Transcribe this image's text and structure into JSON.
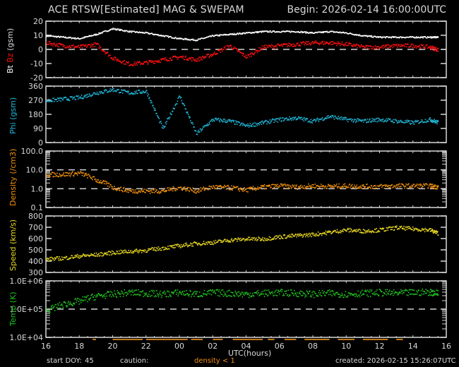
{
  "header": {
    "title": "ACE RTSW[Estimated] MAG & SWEPAM",
    "begin": "Begin: 2026-02-14 16:00:00UTC"
  },
  "footer": {
    "start_doy_label": "start DOY:",
    "start_doy_value": "45",
    "caution_label": "caution:",
    "caution_value": "density < 1",
    "created": "created: 2026-02-15 15:26:07UTC",
    "x_axis_label": "UTC(hours)"
  },
  "colors": {
    "bt": "#ffffff",
    "bz": "#ff1010",
    "phi": "#20b8d8",
    "density": "#f0900c",
    "speed": "#e8d820",
    "temp": "#20c020",
    "caution": "#c07818",
    "axes": "#d8d8d8"
  },
  "chart_data": [
    {
      "type": "scatter",
      "title": "Bt Bz (gsm)",
      "ylabel": "Bt  Bz  (gsm)",
      "ylabel_parts": [
        "Bt",
        "Bz",
        "(gsm)"
      ],
      "ylim": [
        -20,
        20
      ],
      "yticks": [
        "20",
        "10",
        "0",
        "-10",
        "-20"
      ],
      "reference_lines": [
        0
      ],
      "x": [
        16,
        17,
        18,
        19,
        20,
        21,
        22,
        23,
        24,
        25,
        26,
        27,
        28,
        29,
        30,
        31,
        32,
        33,
        34,
        35,
        36,
        37,
        38,
        39,
        39.5
      ],
      "series": [
        {
          "name": "Bt",
          "values": [
            10,
            9,
            8,
            11,
            15,
            13,
            12,
            10,
            8,
            7,
            10,
            11,
            12,
            13,
            13,
            13,
            12,
            13,
            12,
            10,
            9,
            9,
            9,
            9,
            9
          ]
        },
        {
          "name": "Bz",
          "values": [
            5,
            3,
            2,
            4,
            -6,
            -10,
            -9,
            -7,
            -5,
            -7,
            -3,
            3,
            -5,
            2,
            3,
            4,
            5,
            5,
            4,
            2,
            2,
            3,
            3,
            2,
            0
          ]
        }
      ]
    },
    {
      "type": "scatter",
      "title": "Phi (gsm)",
      "ylabel": "Phi (gsm)",
      "ylim": [
        0,
        360
      ],
      "yticks": [
        "360",
        "270",
        "180",
        "90",
        "0"
      ],
      "x": [
        16,
        17,
        18,
        19,
        20,
        21,
        22,
        23,
        24,
        25,
        26,
        27,
        28,
        29,
        30,
        31,
        32,
        33,
        34,
        35,
        36,
        37,
        38,
        39,
        39.5
      ],
      "series": [
        {
          "name": "Phi",
          "values": [
            270,
            280,
            290,
            320,
            340,
            320,
            330,
            90,
            300,
            60,
            150,
            140,
            110,
            130,
            150,
            160,
            140,
            170,
            150,
            140,
            150,
            140,
            130,
            150,
            130
          ]
        }
      ]
    },
    {
      "type": "scatter",
      "title": "Density (/cm3)",
      "ylabel": "Density (/cm3)",
      "yscale": "log",
      "ylim": [
        0.1,
        100
      ],
      "yticks": [
        "100.0",
        "10.0",
        "1.0",
        "0.1"
      ],
      "reference_lines": [
        1,
        10
      ],
      "x": [
        16,
        17,
        18,
        19,
        20,
        21,
        22,
        23,
        24,
        25,
        26,
        27,
        28,
        29,
        30,
        31,
        32,
        33,
        34,
        35,
        36,
        37,
        38,
        39,
        39.5
      ],
      "series": [
        {
          "name": "Density",
          "values": [
            6,
            6,
            7,
            3,
            1.2,
            0.8,
            0.8,
            0.8,
            1.2,
            0.8,
            1.3,
            1.2,
            0.9,
            1.3,
            1.5,
            1.3,
            1.5,
            1.4,
            1.5,
            1.4,
            1.4,
            1.5,
            1.5,
            1.5,
            1.3
          ]
        }
      ]
    },
    {
      "type": "scatter",
      "title": "Speed (km/s)",
      "ylabel": "Speed (km/s)",
      "ylim": [
        300,
        800
      ],
      "yticks": [
        "800",
        "700",
        "600",
        "500",
        "400",
        "300"
      ],
      "x": [
        16,
        17,
        18,
        19,
        20,
        21,
        22,
        23,
        24,
        25,
        26,
        27,
        28,
        29,
        30,
        31,
        32,
        33,
        34,
        35,
        36,
        37,
        38,
        39,
        39.5
      ],
      "series": [
        {
          "name": "Speed",
          "values": [
            420,
            430,
            450,
            460,
            480,
            490,
            500,
            520,
            540,
            560,
            570,
            590,
            600,
            600,
            620,
            630,
            640,
            660,
            680,
            670,
            680,
            700,
            690,
            680,
            650
          ]
        }
      ]
    },
    {
      "type": "scatter",
      "title": "Temp (K)",
      "ylabel": "Temp (K)",
      "yscale": "log",
      "ylim": [
        10000,
        1000000
      ],
      "yticks": [
        "1.0E+06",
        "1.0E+05",
        "1.0E+04"
      ],
      "reference_lines": [
        100000
      ],
      "x": [
        16,
        17,
        18,
        19,
        20,
        21,
        22,
        23,
        24,
        25,
        26,
        27,
        28,
        29,
        30,
        31,
        32,
        33,
        34,
        35,
        36,
        37,
        38,
        39,
        39.5
      ],
      "series": [
        {
          "name": "Temp",
          "values": [
            90000,
            150000,
            200000,
            300000,
            350000,
            400000,
            380000,
            350000,
            400000,
            350000,
            400000,
            380000,
            350000,
            380000,
            400000,
            380000,
            350000,
            380000,
            350000,
            380000,
            400000,
            380000,
            400000,
            420000,
            380000
          ]
        }
      ]
    }
  ],
  "x_axis": {
    "ticks": [
      "16",
      "18",
      "20",
      "22",
      "00",
      "02",
      "04",
      "06",
      "08",
      "10",
      "12",
      "14",
      "16"
    ],
    "label": "UTC(hours)",
    "range_hours": [
      16,
      40
    ]
  }
}
